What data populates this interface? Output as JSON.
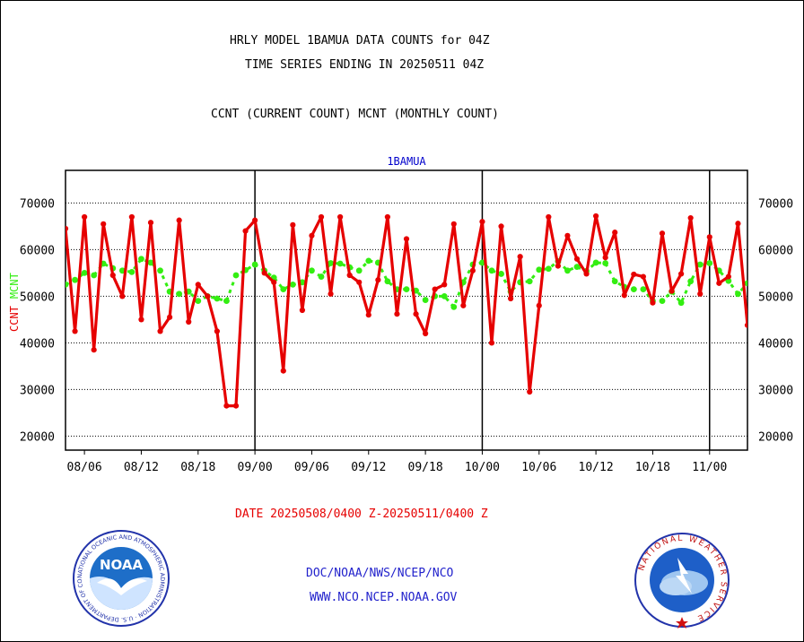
{
  "header": {
    "line1": "HRLY MODEL 1BAMUA DATA COUNTS for 04Z",
    "line2": "TIME SERIES ENDING IN 20250511 04Z",
    "line3": "CCNT (CURRENT COUNT) MCNT (MONTHLY COUNT)"
  },
  "footer": {
    "date_range": "DATE 20250508/0400 Z-20250511/0400 Z",
    "org": "DOC/NOAA/NWS/NCEP/NCO",
    "url": "WWW.NCO.NCEP.NOAA.GOV"
  },
  "logos": {
    "noaa_text": "NOAA",
    "nws_ring_text": "NATIONAL WEATHER SERVICE",
    "noaa_ring_text": "NATIONAL OCEANIC AND ATMOSPHERIC ADMINISTRATION · U.S. DEPARTMENT OF COMMERCE"
  },
  "colors": {
    "ccnt": "#e60000",
    "mcnt": "#33ee11",
    "title": "#0000cc",
    "footer_red": "#e60000",
    "footer_blue": "#2222cc"
  },
  "chart_data": {
    "type": "line",
    "title": "1BAMUA",
    "y_label_left_red": "CCNT",
    "y_label_left_green": "MCNT",
    "ylim": [
      17000,
      77000
    ],
    "y_ticks": [
      20000,
      30000,
      40000,
      50000,
      60000,
      70000
    ],
    "y_tick_labels": [
      "20000",
      "30000",
      "40000",
      "50000",
      "60000",
      "70000"
    ],
    "x_hours_range": [
      0,
      72
    ],
    "x_ticks": [
      {
        "hour": 2,
        "label": "08/06"
      },
      {
        "hour": 8,
        "label": "08/12"
      },
      {
        "hour": 14,
        "label": "08/18"
      },
      {
        "hour": 20,
        "label": "09/00"
      },
      {
        "hour": 26,
        "label": "09/06"
      },
      {
        "hour": 32,
        "label": "09/12"
      },
      {
        "hour": 38,
        "label": "09/18"
      },
      {
        "hour": 44,
        "label": "10/00"
      },
      {
        "hour": 50,
        "label": "10/06"
      },
      {
        "hour": 56,
        "label": "10/12"
      },
      {
        "hour": 62,
        "label": "10/18"
      },
      {
        "hour": 68,
        "label": "11/00"
      }
    ],
    "day_boundaries_hours": [
      20,
      44,
      68
    ],
    "grid": true,
    "series": [
      {
        "name": "CCNT",
        "values": [
          64500,
          42500,
          67000,
          38500,
          65500,
          54500,
          50000,
          67000,
          45000,
          65800,
          42500,
          45500,
          66300,
          44500,
          52500,
          50000,
          42500,
          26500,
          26500,
          64000,
          66300,
          55000,
          53000,
          34000,
          65300,
          47000,
          63000,
          67000,
          50500,
          67000,
          54500,
          53000,
          46000,
          53500,
          67000,
          46200,
          62300,
          46200,
          42000,
          51500,
          52500,
          65500,
          48000,
          55500,
          66000,
          40000,
          65000,
          49500,
          58500,
          29500,
          48000,
          67000,
          56500,
          63000,
          58000,
          54800,
          67200,
          58300,
          63700,
          50200,
          54700,
          54200,
          48600,
          63500,
          51100,
          54800,
          66800,
          50500,
          62700,
          52800,
          54200,
          65600,
          43800
        ]
      },
      {
        "name": "MCNT",
        "values": [
          52500,
          53500,
          55000,
          54500,
          57000,
          56000,
          55500,
          55200,
          58000,
          57200,
          55500,
          51000,
          50500,
          51000,
          49000,
          50000,
          49500,
          49000,
          54500,
          55600,
          56800,
          55500,
          54000,
          51500,
          52500,
          53000,
          55500,
          54200,
          57100,
          57000,
          56200,
          55500,
          57600,
          57200,
          53200,
          51500,
          51500,
          51200,
          49200,
          50000,
          50000,
          47700,
          53000,
          56800,
          57200,
          55500,
          54800,
          51000,
          53000,
          53200,
          55700,
          55900,
          57500,
          55500,
          56300,
          55400,
          57200,
          57100,
          53200,
          52000,
          51500,
          51500,
          49000,
          49000,
          51000,
          48600,
          53200,
          56800,
          57100,
          55500,
          53300,
          50500,
          52800
        ]
      }
    ]
  }
}
